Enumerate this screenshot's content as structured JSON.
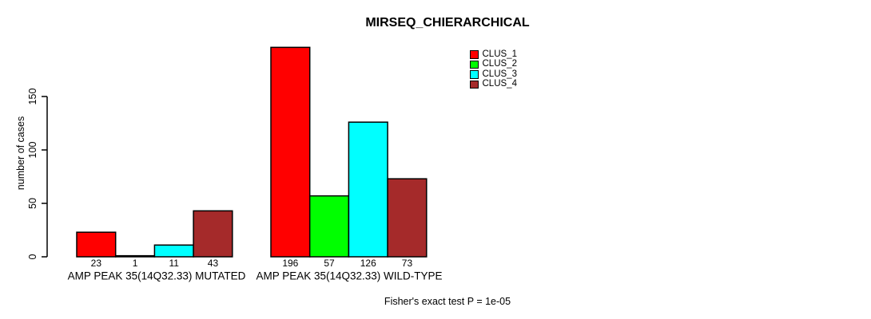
{
  "chart_data": {
    "type": "bar",
    "title": "MIRSEQ_CHIERARCHICAL",
    "xlabel": "",
    "ylabel": "number of cases",
    "ylim": [
      0,
      150
    ],
    "yticks": [
      0,
      50,
      100,
      150
    ],
    "grid": false,
    "legend_position": "top-right",
    "categories": [
      "AMP PEAK 35(14Q32.33) MUTATED",
      "AMP PEAK 35(14Q32.33) WILD-TYPE"
    ],
    "series": [
      {
        "name": "CLUS_1",
        "color": "#FF0000",
        "values": [
          23,
          196
        ]
      },
      {
        "name": "CLUS_2",
        "color": "#00FF00",
        "values": [
          1,
          57
        ]
      },
      {
        "name": "CLUS_3",
        "color": "#00FFFF",
        "values": [
          11,
          126
        ]
      },
      {
        "name": "CLUS_4",
        "color": "#A52A2A",
        "values": [
          43,
          73
        ]
      }
    ],
    "bar_value_labels": [
      [
        23,
        1,
        11,
        43
      ],
      [
        196,
        57,
        126,
        73
      ]
    ],
    "annotation": "Fisher's exact test P = 1e-05",
    "axis_color": "#000000",
    "bar_border_color": "#000000"
  }
}
